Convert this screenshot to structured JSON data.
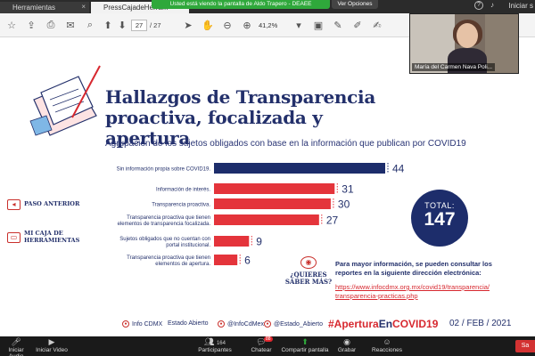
{
  "tabs": [
    {
      "label": "Herramientas"
    },
    {
      "label": "PressCajadeHerra..."
    }
  ],
  "share_banner": "Usted está viendo la pantalla de Aldo Trapero - DEAEE",
  "options_label": "Ver Opciones",
  "header_right": {
    "signin": "Iniciar s"
  },
  "toolbar": {
    "page_current": "27",
    "page_total": "/ 27",
    "zoom": "41,2%"
  },
  "slide": {
    "title": "Hallazgos de Transparencia proactiva, focalizada y apertura",
    "subtitle": "Agrupación de los sujetos obligados con base en la información que publican por COVID19",
    "nav": [
      {
        "label": "Paso anterior"
      },
      {
        "label": "Mi caja de herramientas"
      }
    ],
    "total": {
      "label": "TOTAL:",
      "value": "147"
    },
    "quieres": "¿Quieres saber más?",
    "info_text": "Para mayor información, se pueden consultar los reportes en la siguiente dirección electrónica:",
    "links": [
      "https://www.infocdmx.org.mx/covid19/transparencia/",
      "transparencia-practicas.php"
    ],
    "footer": {
      "brand": "Info CDMX",
      "estado": "Estado Abierto",
      "handle1": "@InfoCdMex",
      "handle2": "@Estado_Abierto",
      "hashtag_prefix": "#Apertura",
      "hashtag_mid": "En",
      "hashtag_suffix": "COVID19",
      "date": "02 / FEB / 2021"
    }
  },
  "chart_data": {
    "type": "bar",
    "orientation": "horizontal",
    "title": "",
    "categories": [
      "Sin información propia sobre COVID19.",
      "Información de interés.",
      "Transparencia proactiva.",
      "Transparencia proactiva que tienen elementos de transparencia focalizada.",
      "Sujetos obligados que no cuentan con portal institucional.",
      "Transparencia proactiva que tienen elementos de apertura."
    ],
    "values": [
      44,
      31,
      30,
      27,
      9,
      6
    ],
    "value_labels": [
      "44",
      "31",
      "30",
      "27",
      "9",
      "6"
    ],
    "colors": [
      "#1d2d6b",
      "#e4343b",
      "#e4343b",
      "#e4343b",
      "#e4343b",
      "#e4343b"
    ],
    "xlim": [
      0,
      44
    ]
  },
  "video": {
    "name": "María del Carmen Nava Poli..."
  },
  "meeting_bar": [
    {
      "icon": "mic-icon",
      "label": "Iniciar Audio"
    },
    {
      "icon": "video-icon",
      "label": "Iniciar Video"
    },
    {
      "icon": "participants-icon",
      "label": "Participantes",
      "count": "164"
    },
    {
      "icon": "chat-icon",
      "label": "Chatear",
      "badge": "88"
    },
    {
      "icon": "share-screen-icon",
      "label": "Compartir pantalla"
    },
    {
      "icon": "record-icon",
      "label": "Grabar"
    },
    {
      "icon": "reactions-icon",
      "label": "Reacciones"
    }
  ],
  "leave_label": "Sa"
}
